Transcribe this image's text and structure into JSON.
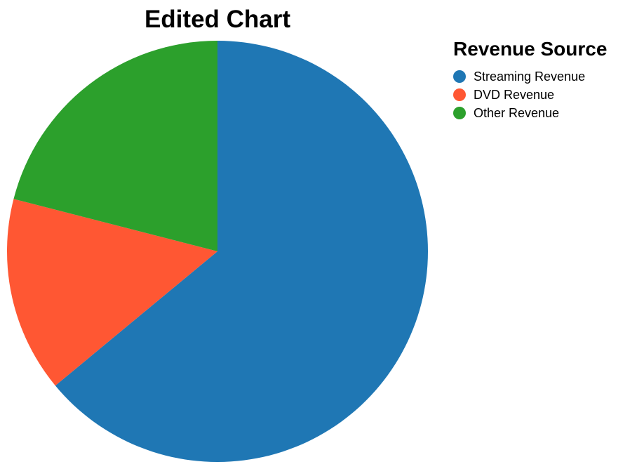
{
  "chart_data": {
    "type": "pie",
    "title": "Edited Chart",
    "legend_title": "Revenue Source",
    "legend_position": "right",
    "slices": [
      {
        "label": "Streaming Revenue",
        "value": 64,
        "color": "#1f77b4"
      },
      {
        "label": "DVD Revenue",
        "value": 15,
        "color": "#ff5733"
      },
      {
        "label": "Other Revenue",
        "value": 21,
        "color": "#2ca02c"
      }
    ]
  }
}
